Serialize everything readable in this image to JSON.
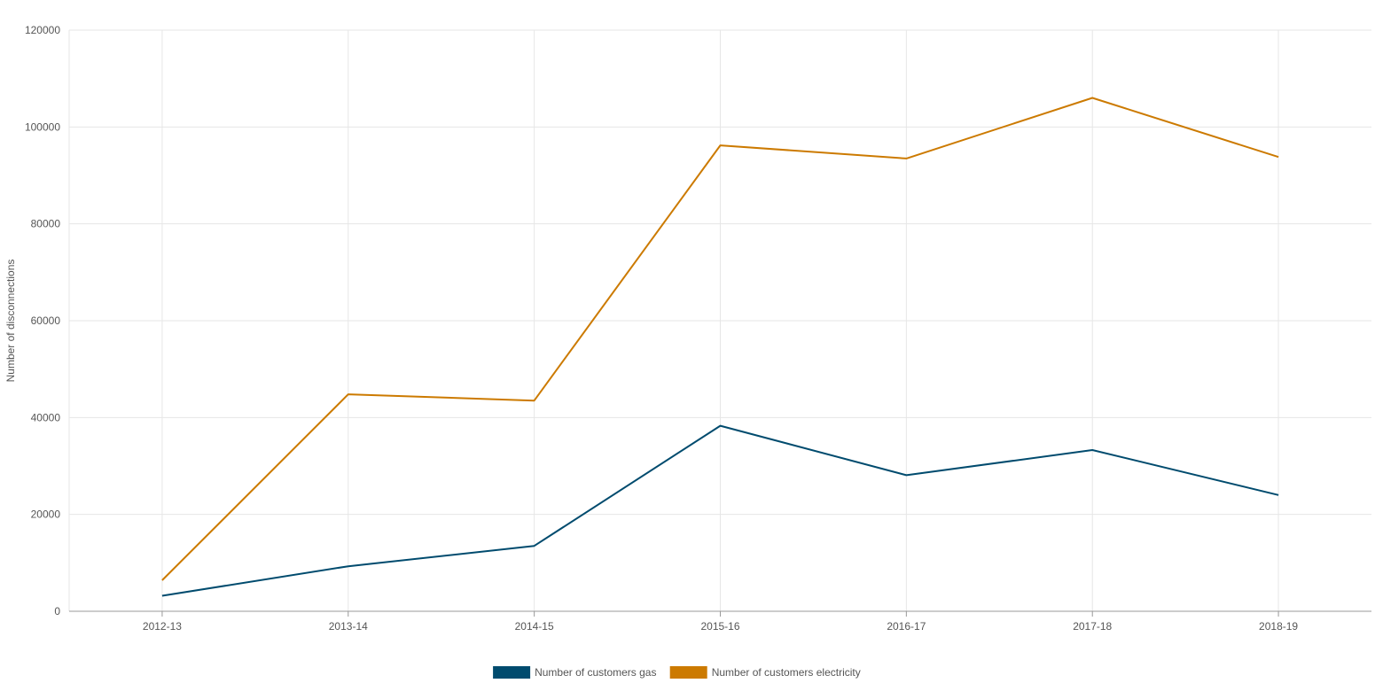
{
  "chart_data": {
    "type": "line",
    "title": "",
    "xlabel": "",
    "ylabel": "Number of disconnections",
    "categories": [
      "2012-13",
      "2013-14",
      "2014-15",
      "2015-16",
      "2016-17",
      "2017-18",
      "2018-19"
    ],
    "yticks": [
      "0",
      "20000",
      "40000",
      "60000",
      "80000",
      "100000",
      "120000"
    ],
    "ylim": [
      0,
      120000
    ],
    "grid": true,
    "legend_position": "bottom-center",
    "series": [
      {
        "name": "Number of customers gas",
        "color": "#004b6e",
        "values": [
          3200,
          9300,
          13500,
          38300,
          28100,
          33300,
          24000
        ]
      },
      {
        "name": "Number of customers electricity",
        "color": "#cc7a00",
        "values": [
          6400,
          44800,
          43500,
          96200,
          93500,
          106000,
          93800
        ]
      }
    ]
  }
}
